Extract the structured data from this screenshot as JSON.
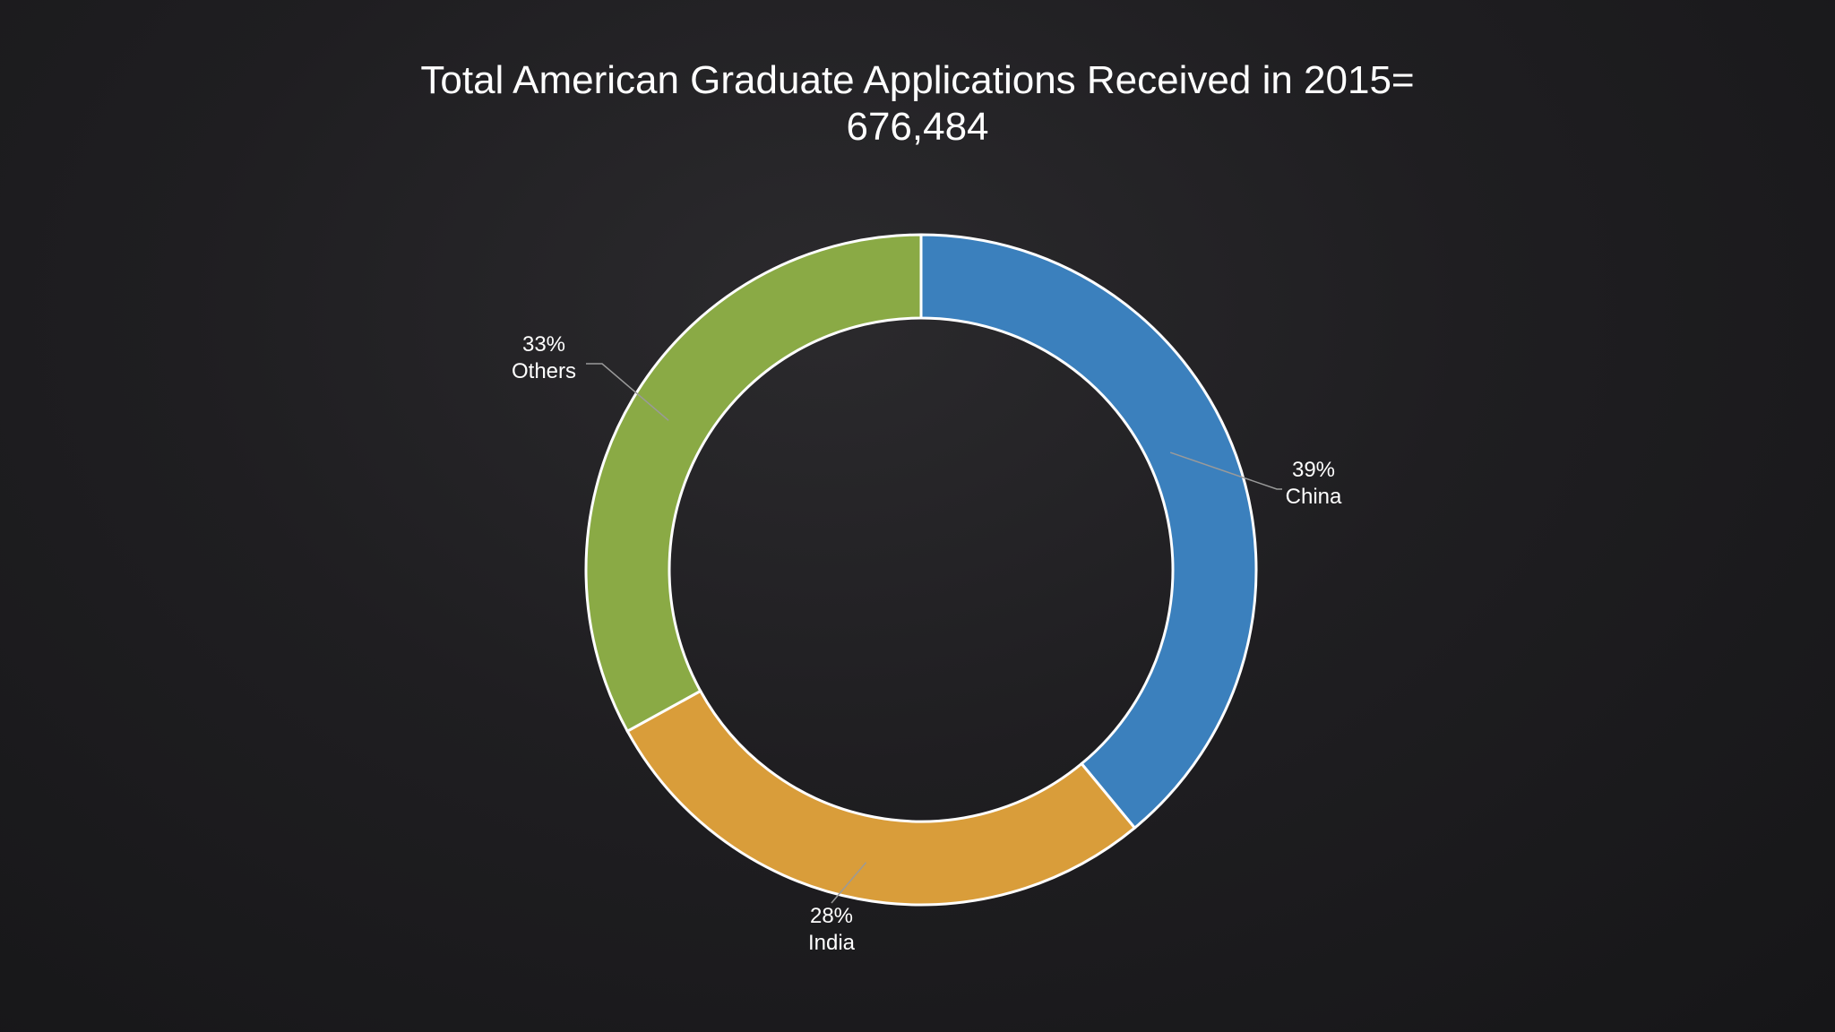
{
  "title": {
    "line1": "Total American Graduate Applications Received in 2015=",
    "line2": "676,484"
  },
  "chart_data": {
    "type": "pie",
    "variant": "donut",
    "slices": [
      {
        "label": "China",
        "value": 39,
        "value_label": "39%",
        "color": "#3b80bd"
      },
      {
        "label": "India",
        "value": 28,
        "value_label": "28%",
        "color": "#d99d3a"
      },
      {
        "label": "Others",
        "value": 33,
        "value_label": "33%",
        "color": "#8aaa45"
      }
    ],
    "start_angle_deg": 0,
    "direction": "clockwise",
    "slice_border_color": "#ffffff",
    "leader_line_color": "#9a9a9a"
  }
}
